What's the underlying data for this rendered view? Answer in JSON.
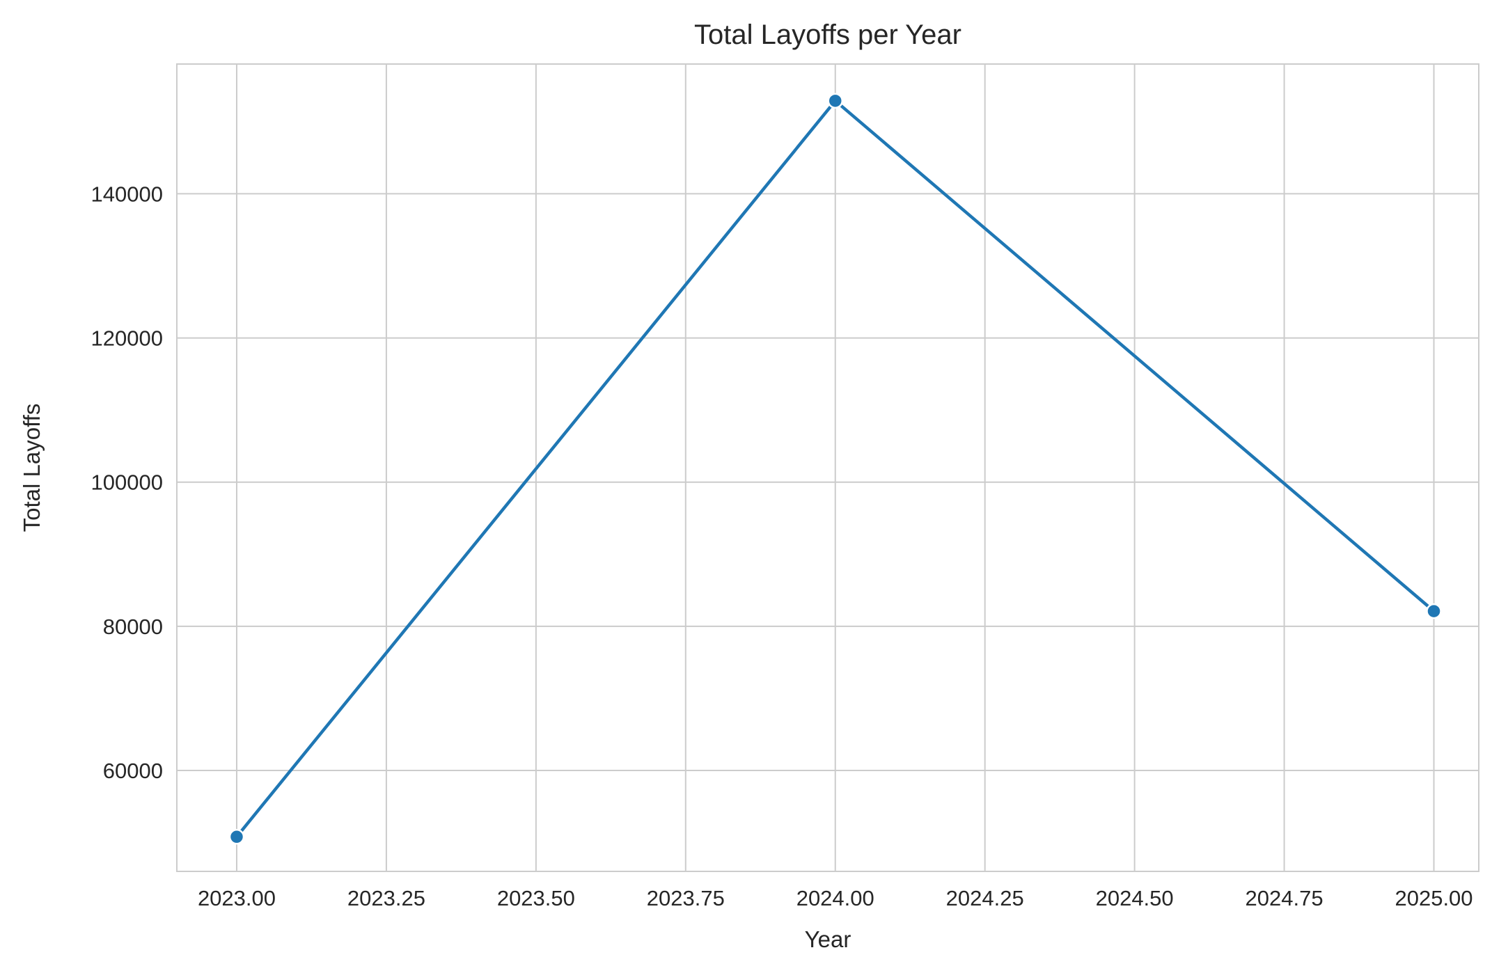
{
  "chart_data": {
    "type": "line",
    "title": "Total Layoffs per Year",
    "xlabel": "Year",
    "ylabel": "Total Layoffs",
    "x": [
      2023,
      2024,
      2025
    ],
    "series": [
      {
        "values": [
          50800,
          152900,
          82100
        ],
        "color": "#1f77b4",
        "marker": "circle"
      }
    ],
    "xlim": [
      2022.9,
      2025.075
    ],
    "ylim": [
      46000,
      158000
    ],
    "xticks": [
      2023,
      2023.25,
      2023.5,
      2023.75,
      2024,
      2024.25,
      2024.5,
      2024.75,
      2025
    ],
    "xtick_labels": [
      "2023.00",
      "2023.25",
      "2023.50",
      "2023.75",
      "2024.00",
      "2024.25",
      "2024.50",
      "2024.75",
      "2025.00"
    ],
    "yticks": [
      60000,
      80000,
      100000,
      120000,
      140000
    ],
    "ytick_labels": [
      "60000",
      "80000",
      "100000",
      "120000",
      "140000"
    ],
    "grid": true,
    "legend": "none",
    "colors": {
      "grid": "#cccccc",
      "spine": "#cccccc",
      "text": "#262626"
    }
  }
}
